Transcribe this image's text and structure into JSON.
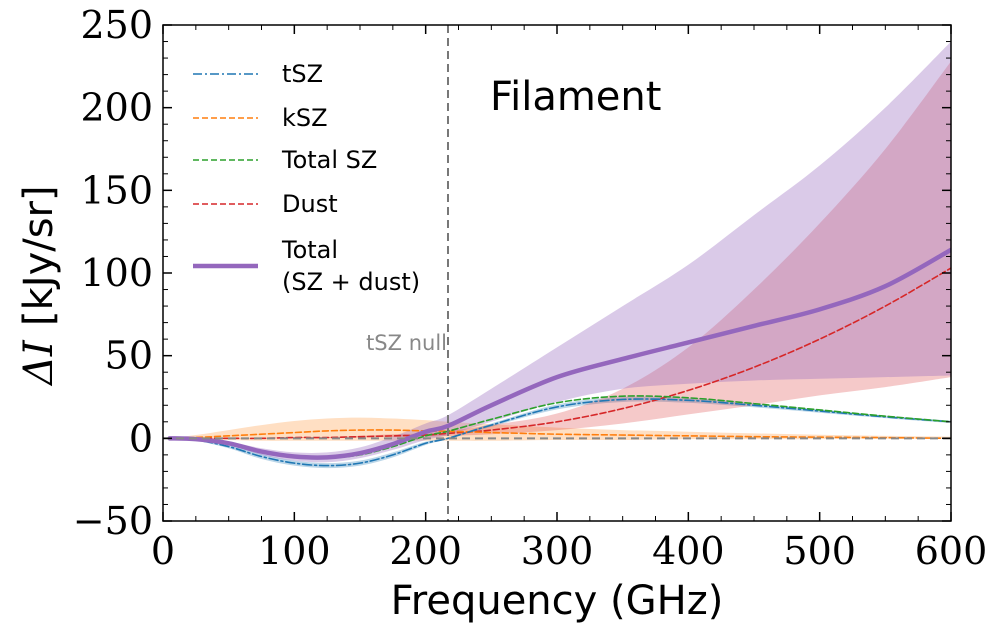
{
  "chart_data": {
    "type": "line",
    "annotation_title": "Filament",
    "xlabel": "Frequency (GHz)",
    "ylabel_math": "ΔI",
    "ylabel_units": "[kJy/sr]",
    "xlim": [
      0,
      600
    ],
    "ylim": [
      -50,
      250
    ],
    "xticks": [
      0,
      100,
      200,
      300,
      400,
      500,
      600
    ],
    "yticks": [
      -50,
      0,
      50,
      100,
      150,
      200,
      250
    ],
    "xtick_labels": [
      "0",
      "100",
      "200",
      "300",
      "400",
      "500",
      "600"
    ],
    "ytick_labels": [
      "−50",
      "0",
      "50",
      "100",
      "150",
      "200",
      "250"
    ],
    "null_line": {
      "x": 217,
      "label": "tSZ null"
    },
    "zero_line": {
      "y": 0
    },
    "grid": false,
    "legend_position": "upper-left",
    "x": [
      5,
      25,
      50,
      75,
      100,
      125,
      150,
      175,
      200,
      217,
      250,
      300,
      350,
      400,
      450,
      500,
      550,
      600
    ],
    "series": [
      {
        "name": "tSZ",
        "color": "#1f77b4",
        "style": "dashdot",
        "values": [
          0,
          -1,
          -5,
          -11,
          -15,
          -16.5,
          -15,
          -10,
          -3,
          0,
          8,
          19,
          23.5,
          23,
          20,
          16.5,
          13,
          10
        ],
        "band_lower": [
          0,
          -1.5,
          -6,
          -12.5,
          -16.5,
          -18,
          -16.5,
          -11.5,
          -4,
          -0.5,
          7,
          17.5,
          22,
          21.5,
          18.8,
          15.5,
          12.2,
          9.3
        ],
        "band_upper": [
          0,
          -0.5,
          -4,
          -9.5,
          -13.5,
          -15,
          -13.5,
          -8.5,
          -2,
          0.5,
          9,
          20.5,
          25,
          24.5,
          21.2,
          17.5,
          13.8,
          10.7
        ]
      },
      {
        "name": "kSZ",
        "color": "#ff7f0e",
        "style": "dashed",
        "values": [
          0,
          0.5,
          1.5,
          2.5,
          3.5,
          4.5,
          5,
          5,
          4.5,
          4.3,
          3.5,
          2.5,
          2,
          1.5,
          1,
          0.7,
          0.4,
          0
        ],
        "band_lower": [
          0,
          -0.5,
          -1,
          -1.5,
          -1.5,
          -1.5,
          -1.5,
          -1.5,
          -1.5,
          -1.5,
          -1.5,
          -1,
          -1,
          -0.5,
          -0.5,
          -0.5,
          -0.2,
          0
        ],
        "band_upper": [
          0,
          2,
          5,
          8,
          10.5,
          12,
          12.5,
          12,
          11,
          10,
          8.5,
          6.5,
          5,
          4,
          3,
          2.2,
          1.5,
          1
        ]
      },
      {
        "name": "Total SZ",
        "color": "#2ca02c",
        "style": "dashed",
        "values": [
          0,
          -0.5,
          -3.5,
          -8.5,
          -11.5,
          -12,
          -10,
          -5,
          1.5,
          4.3,
          11.5,
          21.5,
          25.5,
          24.5,
          21,
          17.2,
          13.4,
          10
        ]
      },
      {
        "name": "Dust",
        "color": "#d62728",
        "style": "dashed",
        "values": [
          0,
          0,
          0,
          0,
          0.5,
          0.5,
          1,
          1.5,
          2,
          3,
          5,
          10,
          18,
          29,
          43,
          60,
          80,
          103
        ],
        "band_lower": [
          0,
          0,
          0,
          0,
          0.2,
          0.3,
          0.5,
          0.8,
          1,
          1.5,
          2.5,
          5,
          9,
          14.5,
          20,
          26,
          31,
          37
        ],
        "band_upper": [
          0,
          0,
          0,
          0.2,
          0.8,
          0.8,
          1.5,
          2.5,
          3,
          4.5,
          8,
          15,
          30,
          55,
          90,
          130,
          175,
          228
        ]
      },
      {
        "name": "Total\n(SZ + dust)",
        "color": "#9467bd",
        "style": "solid",
        "values": [
          0,
          -0.5,
          -3,
          -8,
          -11,
          -11.5,
          -9,
          -3.5,
          4,
          7.5,
          20,
          37,
          48,
          58,
          68,
          78,
          92,
          114
        ],
        "band_lower": [
          0,
          -1,
          -4,
          -10,
          -13.5,
          -14.5,
          -12,
          -7,
          -1,
          2,
          10,
          22,
          30,
          33,
          35,
          36,
          37,
          38
        ],
        "band_upper": [
          0,
          0,
          -2,
          -6,
          -8.5,
          -8.5,
          -5.5,
          1,
          9,
          14,
          30,
          55,
          80,
          105,
          135,
          165,
          200,
          240
        ]
      }
    ]
  }
}
